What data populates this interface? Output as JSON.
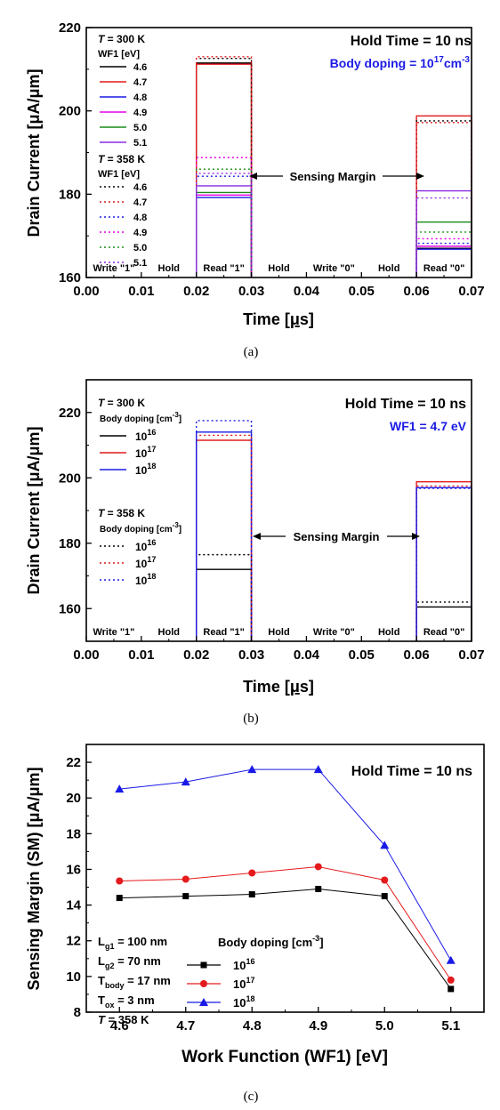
{
  "chart_data": [
    {
      "type": "line",
      "panel_label": "(a)",
      "title": "Hold Time = 10 ns",
      "subtitle_base": "Body doping = 10",
      "subtitle_exp": "17",
      "subtitle_unit_base": "cm",
      "subtitle_unit_exp": "-3",
      "subtitle_color": "#1a1ae6",
      "xlabel_pre": "Time [",
      "xlabel_greek": "μ",
      "xlabel_post": "s]",
      "ylabel": "Drain Current [μA/μm]",
      "xlim": [
        0.0,
        0.07
      ],
      "ylim": [
        160,
        220
      ],
      "xticks": [
        "0.00",
        "0.01",
        "0.02",
        "0.03",
        "0.04",
        "0.05",
        "0.06",
        "0.07"
      ],
      "yticks": [
        "160",
        "180",
        "200",
        "220"
      ],
      "phases": [
        "Write \"1\"",
        "Hold",
        "Read \"1\"",
        "Hold",
        "Write \"0\"",
        "Hold",
        "Read \"0\""
      ],
      "annotation": "Sensing Margin",
      "legend_groups": [
        {
          "header_T": "T",
          "header_rest": " = 300 K",
          "sub": "WF1 [eV]",
          "style": "solid",
          "entries": [
            {
              "label": "4.6",
              "color": "#000000"
            },
            {
              "label": "4.7",
              "color": "#e41a1c"
            },
            {
              "label": "4.8",
              "color": "#1a1ae6"
            },
            {
              "label": "4.9",
              "color": "#e600e6"
            },
            {
              "label": "5.0",
              "color": "#1a8c1a"
            },
            {
              "label": "5.1",
              "color": "#8a2be2"
            }
          ]
        },
        {
          "header_T": "T",
          "header_rest": " = 358 K",
          "sub": "WF1 [eV]",
          "style": "dotted",
          "entries": [
            {
              "label": "4.6",
              "color": "#000000"
            },
            {
              "label": "4.7",
              "color": "#e41a1c"
            },
            {
              "label": "4.8",
              "color": "#1a1ae6"
            },
            {
              "label": "4.9",
              "color": "#e600e6"
            },
            {
              "label": "5.0",
              "color": "#1a8c1a"
            },
            {
              "label": "5.1",
              "color": "#8a2be2"
            }
          ]
        }
      ],
      "pulses": [
        {
          "style": "solid",
          "color": "#000000",
          "read1": 211.5,
          "read0": 167.0
        },
        {
          "style": "solid",
          "color": "#e41a1c",
          "read1": 211.2,
          "read0": 198.8
        },
        {
          "style": "solid",
          "color": "#1a1ae6",
          "read1": 179.2,
          "read0": 166.8
        },
        {
          "style": "solid",
          "color": "#e600e6",
          "read1": 179.8,
          "read0": 167.5
        },
        {
          "style": "solid",
          "color": "#1a8c1a",
          "read1": 180.4,
          "read0": 173.3
        },
        {
          "style": "solid",
          "color": "#8a2be2",
          "read1": 182.0,
          "read0": 180.8
        },
        {
          "style": "dotted",
          "color": "#000000",
          "read1": 212.6,
          "read0": 197.6
        },
        {
          "style": "dotted",
          "color": "#e41a1c",
          "read1": 213.0,
          "read0": 197.2
        },
        {
          "style": "dotted",
          "color": "#1a1ae6",
          "read1": 184.3,
          "read0": 168.2
        },
        {
          "style": "dotted",
          "color": "#e600e6",
          "read1": 188.8,
          "read0": 169.3
        },
        {
          "style": "dotted",
          "color": "#1a8c1a",
          "read1": 186.0,
          "read0": 170.9
        },
        {
          "style": "dotted",
          "color": "#8a2be2",
          "read1": 185.0,
          "read0": 179.1
        }
      ]
    },
    {
      "type": "line",
      "panel_label": "(b)",
      "title": "Hold Time = 10 ns",
      "subtitle": "WF1 = 4.7 eV",
      "subtitle_color": "#1a1ae6",
      "xlabel_pre": "Time [",
      "xlabel_greek": "μ",
      "xlabel_post": "s]",
      "ylabel": "Drain Current [μA/μm]",
      "xlim": [
        0.0,
        0.07
      ],
      "ylim": [
        150,
        230
      ],
      "xticks": [
        "0.00",
        "0.01",
        "0.02",
        "0.03",
        "0.04",
        "0.05",
        "0.06",
        "0.07"
      ],
      "yticks": [
        "160",
        "180",
        "200",
        "220"
      ],
      "ytick_values": [
        160,
        180,
        200,
        220
      ],
      "phases": [
        "Write \"1\"",
        "Hold",
        "Read \"1\"",
        "Hold",
        "Write \"0\"",
        "Hold",
        "Read \"0\""
      ],
      "annotation": "Sensing Margin",
      "legend_groups": [
        {
          "header_T": "T",
          "header_rest": " = 300 K",
          "sub": "Body doping [cm",
          "sub_exp": "-3",
          "sub_close": "]",
          "style": "solid",
          "entries": [
            {
              "base": "10",
              "exp": "16",
              "color": "#000000"
            },
            {
              "base": "10",
              "exp": "17",
              "color": "#e41a1c"
            },
            {
              "base": "10",
              "exp": "18",
              "color": "#1a1ae6"
            }
          ]
        },
        {
          "header_T": "T",
          "header_rest": " = 358 K",
          "sub": "Body doping [cm",
          "sub_exp": "-3",
          "sub_close": "]",
          "style": "dotted",
          "entries": [
            {
              "base": "10",
              "exp": "16",
              "color": "#000000"
            },
            {
              "base": "10",
              "exp": "17",
              "color": "#e41a1c"
            },
            {
              "base": "10",
              "exp": "18",
              "color": "#1a1ae6"
            }
          ]
        }
      ],
      "pulses": [
        {
          "style": "solid",
          "color": "#000000",
          "read1": 172.0,
          "read0": 160.5
        },
        {
          "style": "solid",
          "color": "#e41a1c",
          "read1": 211.5,
          "read0": 198.8
        },
        {
          "style": "solid",
          "color": "#1a1ae6",
          "read1": 214.0,
          "read0": 197.0
        },
        {
          "style": "dotted",
          "color": "#000000",
          "read1": 176.5,
          "read0": 162.0
        },
        {
          "style": "dotted",
          "color": "#e41a1c",
          "read1": 213.0,
          "read0": 197.5
        },
        {
          "style": "dotted",
          "color": "#1a1ae6",
          "read1": 217.5,
          "read0": 196.8
        }
      ]
    },
    {
      "type": "line",
      "panel_label": "(c)",
      "title": "Hold Time = 10 ns",
      "xlabel": "Work Function (WF1) [eV]",
      "ylabel": "Sensing Margin (SM) [μA/μm]",
      "xlim": [
        4.55,
        5.15
      ],
      "ylim": [
        8,
        23
      ],
      "xticks": [
        "4.6",
        "4.7",
        "4.8",
        "4.9",
        "5.0",
        "5.1"
      ],
      "xtick_values": [
        4.6,
        4.7,
        4.8,
        4.9,
        5.0,
        5.1
      ],
      "yticks": [
        "8",
        "10",
        "12",
        "14",
        "16",
        "18",
        "20",
        "22"
      ],
      "ytick_values": [
        8,
        10,
        12,
        14,
        16,
        18,
        20,
        22
      ],
      "x": [
        4.6,
        4.7,
        4.8,
        4.9,
        5.0,
        5.1
      ],
      "params": [
        {
          "base": "L",
          "sub": "g1",
          "rest": " = 100 nm"
        },
        {
          "base": "L",
          "sub": "g2",
          "rest": " = 70 nm"
        },
        {
          "base": "T",
          "sub": "body",
          "rest": " = 17 nm"
        },
        {
          "base": "T",
          "sub": "ox",
          "rest": " = 3 nm"
        },
        {
          "base": "T",
          "sub": "",
          "rest": " = 358 K",
          "italic": true
        }
      ],
      "legend_title": "Body doping [cm",
      "legend_title_exp": "-3",
      "legend_title_close": "]",
      "series": [
        {
          "name_base": "10",
          "name_exp": "16",
          "color": "#000000",
          "marker": "square",
          "values": [
            14.4,
            14.5,
            14.6,
            14.9,
            14.5,
            9.3
          ]
        },
        {
          "name_base": "10",
          "name_exp": "17",
          "color": "#e41a1c",
          "marker": "circle",
          "values": [
            15.35,
            15.45,
            15.8,
            16.15,
            15.4,
            9.8
          ]
        },
        {
          "name_base": "10",
          "name_exp": "18",
          "color": "#1a1ae6",
          "marker": "triangle",
          "values": [
            20.5,
            20.9,
            21.6,
            21.6,
            17.35,
            10.9
          ]
        }
      ]
    }
  ]
}
